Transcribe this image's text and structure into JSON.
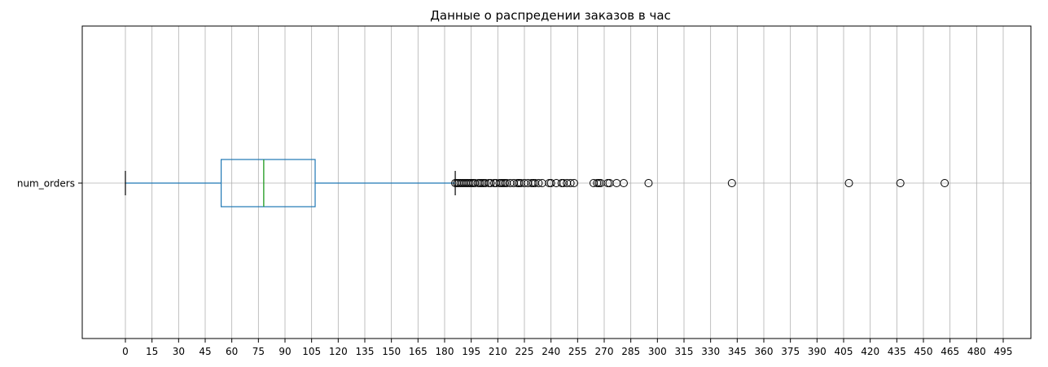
{
  "chart_data": {
    "type": "boxplot",
    "title": "Данные о распредении заказов в час",
    "orientation": "horizontal",
    "category": "num_orders",
    "xlim": [
      -23,
      495
    ],
    "x_ticks": [
      0,
      15,
      30,
      45,
      60,
      75,
      90,
      105,
      120,
      135,
      150,
      165,
      180,
      195,
      210,
      225,
      240,
      255,
      270,
      285,
      300,
      315,
      330,
      345,
      360,
      375,
      390,
      405,
      420,
      435,
      450,
      465,
      480,
      495
    ],
    "grid": "vertical",
    "box": {
      "whisker_low": 0,
      "q1": 54,
      "median": 78,
      "q3": 107,
      "whisker_high": 186
    },
    "outliers": [
      186,
      187,
      188,
      189,
      190,
      191,
      192,
      193,
      194,
      195,
      196,
      197,
      199,
      200,
      201,
      202,
      203,
      205,
      206,
      208,
      209,
      211,
      212,
      213,
      214,
      215,
      217,
      219,
      221,
      222,
      223,
      225,
      227,
      229,
      230,
      231,
      233,
      235,
      239,
      240,
      243,
      246,
      247,
      249,
      251,
      253,
      264,
      266,
      267,
      268,
      272,
      273,
      277,
      281,
      295,
      342,
      408,
      437,
      462
    ],
    "colors": {
      "box": "#1f77b4",
      "median": "#2ca02c",
      "cap": "#000000",
      "grid": "#b0b0b0"
    }
  }
}
